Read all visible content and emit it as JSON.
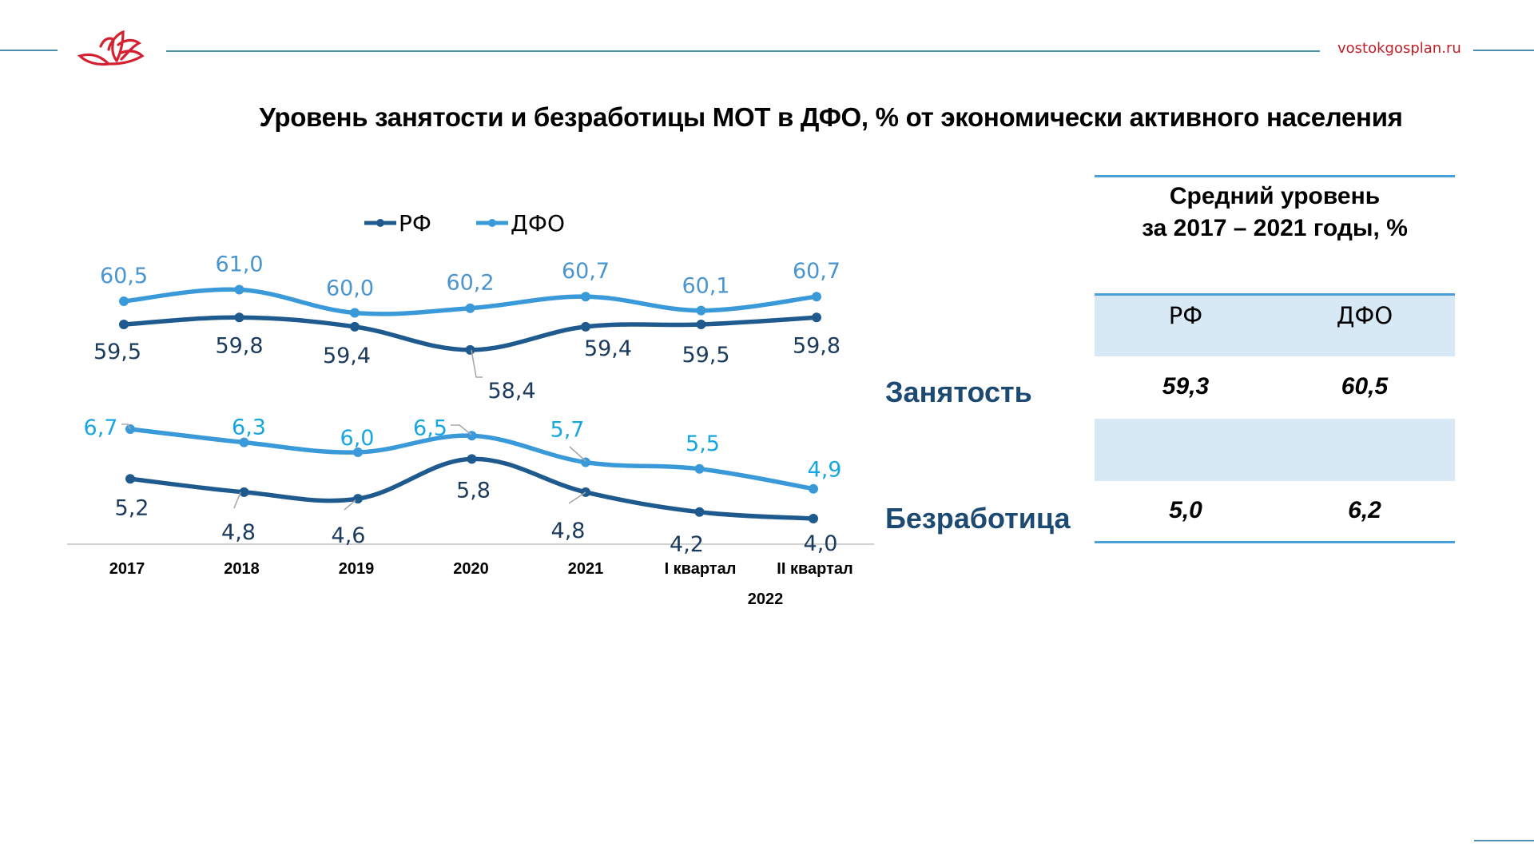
{
  "header": {
    "site_url": "vostokgosplan.ru",
    "logo": "lotus-logo-icon",
    "title": "Уровень занятости и безработицы МОТ в ДФО, % от экономически активного населения"
  },
  "colors": {
    "rf": "#1f5a8f",
    "dfo": "#3a9ad9",
    "rf_label": "#1b3a5c",
    "dfo_label_employment": "#4a95cf",
    "dfo_label_unemployment": "#17a7e0",
    "accent_red": "#c0202a",
    "row_label": "#1d4a72",
    "table_band": "#d8e9f6",
    "rule": "#4a9fd6"
  },
  "chart_data": {
    "type": "line",
    "title": "Уровень занятости и безработицы МОТ в ДФО, % от экономически активного населения",
    "categories": [
      "2017",
      "2018",
      "2019",
      "2020",
      "2021",
      "I квартал",
      "II квартал"
    ],
    "category_group_label": "2022",
    "category_group_members": [
      "I квартал",
      "II квартал"
    ],
    "legend": [
      "РФ",
      "ДФО"
    ],
    "legend_position": "top-center",
    "xlabel": "",
    "ylabel": "",
    "grid": false,
    "panels": [
      {
        "name": "Занятость",
        "series": [
          {
            "name": "ДФО",
            "values": [
              60.5,
              61.0,
              60.0,
              60.2,
              60.7,
              60.1,
              60.7
            ],
            "labels": [
              "60,5",
              "61,0",
              "60,0",
              "60,2",
              "60,7",
              "60,1",
              "60,7"
            ]
          },
          {
            "name": "РФ",
            "values": [
              59.5,
              59.8,
              59.4,
              58.4,
              59.4,
              59.5,
              59.8
            ],
            "labels": [
              "59,5",
              "59,8",
              "59,4",
              "58,4",
              "59,4",
              "59,5",
              "59,8"
            ]
          }
        ]
      },
      {
        "name": "Безработица",
        "series": [
          {
            "name": "ДФО",
            "values": [
              6.7,
              6.3,
              6.0,
              6.5,
              5.7,
              5.5,
              4.9
            ],
            "labels": [
              "6,7",
              "6,3",
              "6,0",
              "6,5",
              "5,7",
              "5,5",
              "4,9"
            ]
          },
          {
            "name": "РФ",
            "values": [
              5.2,
              4.8,
              4.6,
              5.8,
              4.8,
              4.2,
              4.0
            ],
            "labels": [
              "5,2",
              "4,8",
              "4,6",
              "5,8",
              "4,8",
              "4,2",
              "4,0"
            ]
          }
        ]
      }
    ]
  },
  "summary_table": {
    "title_line1": "Средний уровень",
    "title_line2": "за 2017 – 2021 годы, %",
    "columns": [
      "РФ",
      "ДФО"
    ],
    "rows": [
      {
        "label": "Занятость",
        "values": [
          "59,3",
          "60,5"
        ]
      },
      {
        "label": "Безработица",
        "values": [
          "5,0",
          "6,2"
        ]
      }
    ]
  }
}
